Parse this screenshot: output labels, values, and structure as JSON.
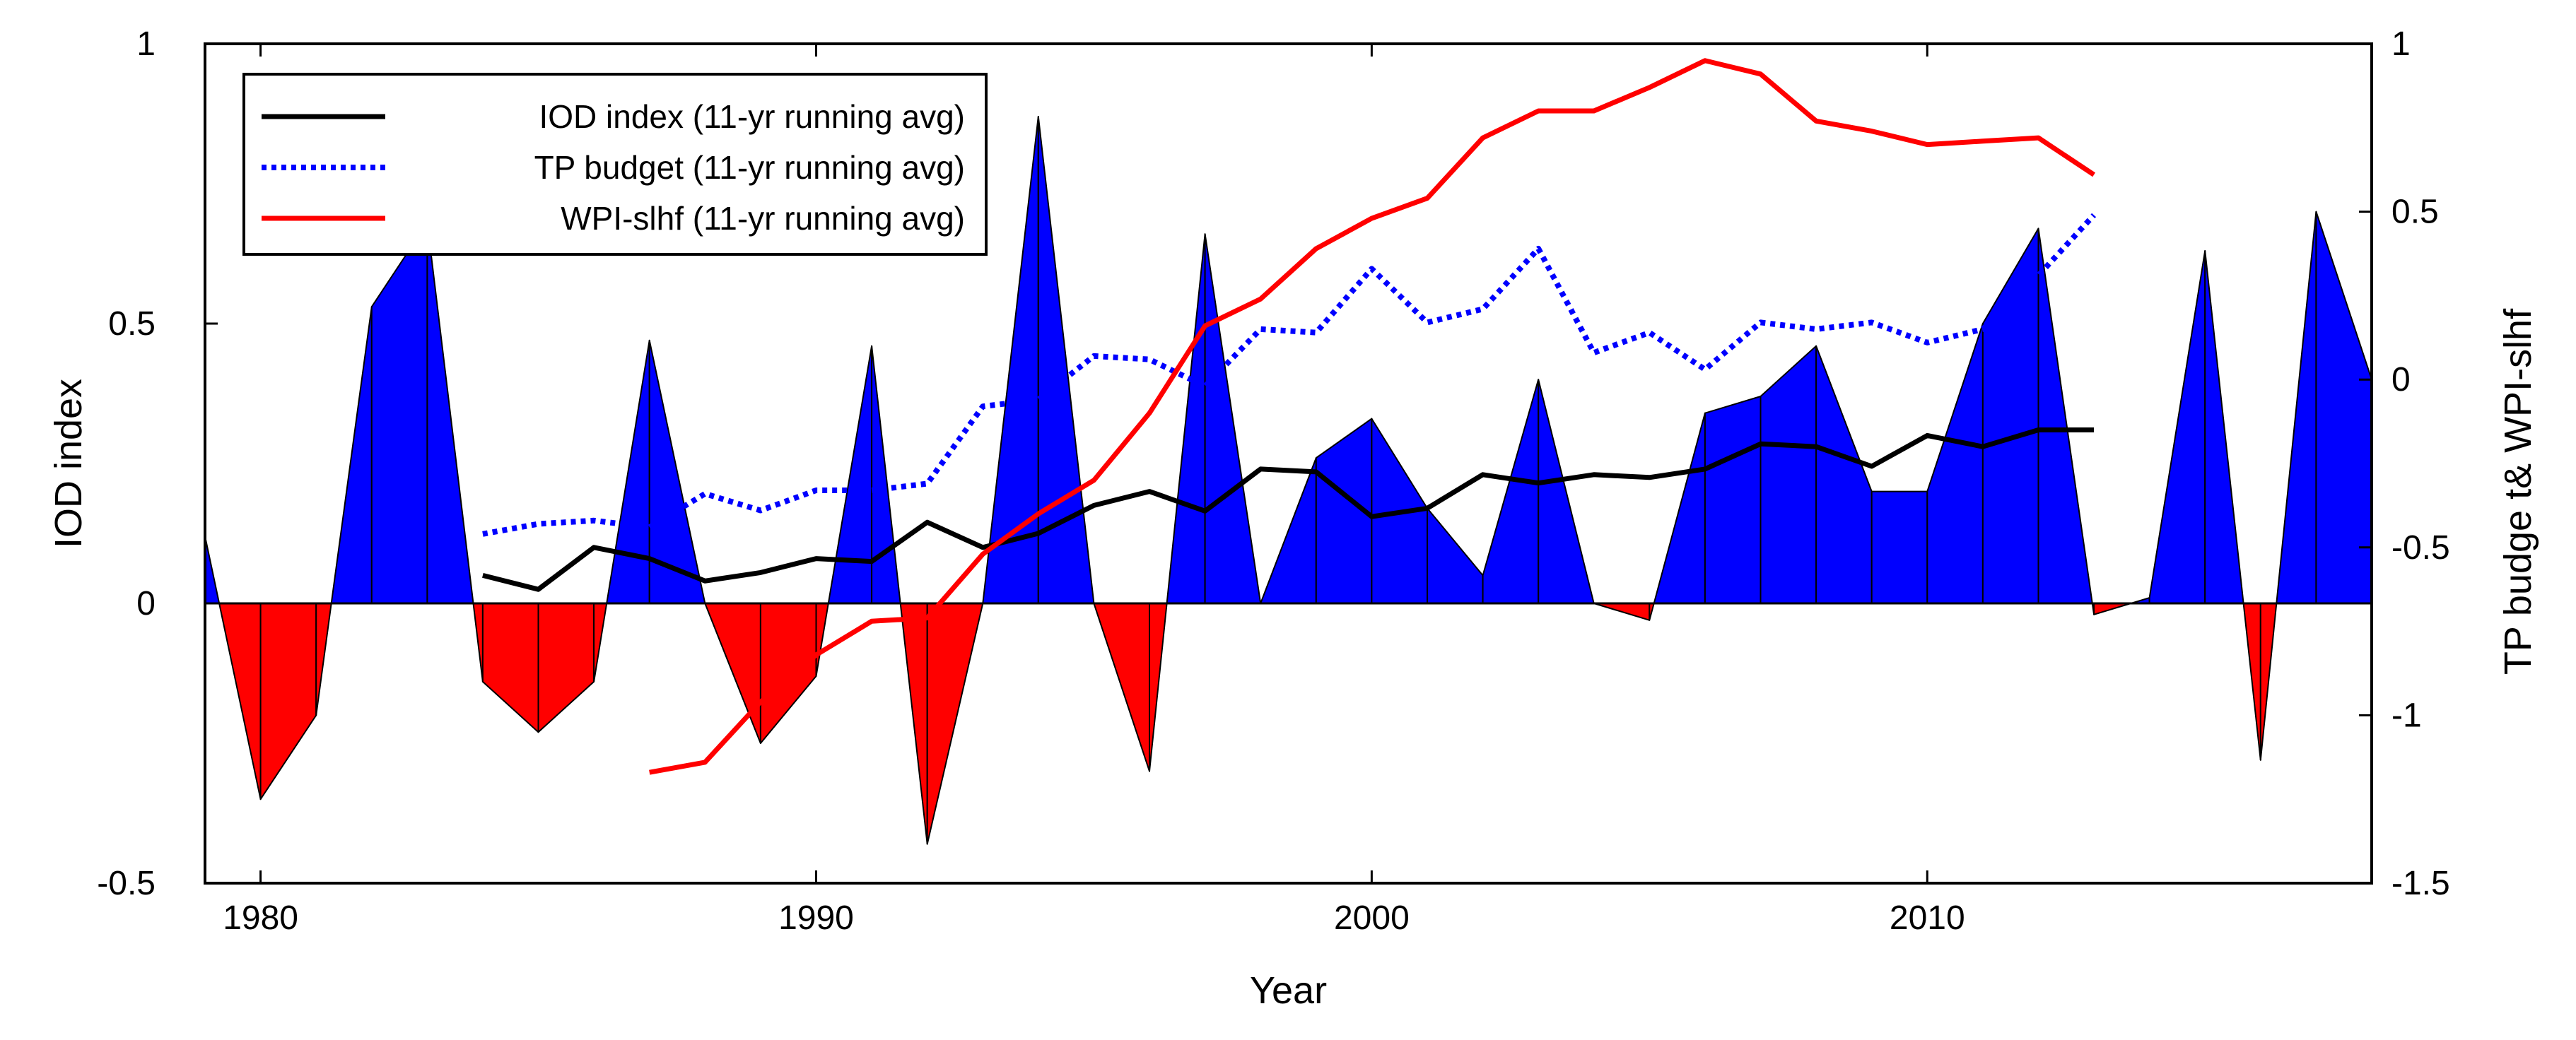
{
  "chart_data": {
    "type": "area",
    "xlabel": "Year",
    "ylabel": "IOD index",
    "y2label": "TP budge t& WPI-slhf",
    "xlim": [
      1979,
      2018
    ],
    "ylim": [
      -0.5,
      1
    ],
    "y2lim": [
      -1.5,
      1
    ],
    "x_ticks": [
      1980,
      1990,
      2000,
      2010
    ],
    "y_ticks": [
      -0.5,
      0,
      0.5,
      1
    ],
    "y_tick_labels": [
      "-0.5",
      "0",
      "0.5",
      "1"
    ],
    "y2_ticks": [
      -1.5,
      -1,
      -0.5,
      0,
      0.5,
      1
    ],
    "y2_tick_labels": [
      "-1.5",
      "-1",
      "-0.5",
      "0",
      "0.5",
      "1"
    ],
    "positive_color": "#0000ff",
    "negative_color": "#ff0000",
    "iod_annual": {
      "x": [
        1979,
        1980,
        1981,
        1982,
        1983,
        1984,
        1985,
        1986,
        1987,
        1988,
        1989,
        1990,
        1991,
        1992,
        1993,
        1994,
        1995,
        1996,
        1997,
        1998,
        1999,
        2000,
        2001,
        2002,
        2003,
        2004,
        2005,
        2006,
        2007,
        2008,
        2009,
        2010,
        2011,
        2012,
        2013,
        2014,
        2015,
        2016,
        2017,
        2018
      ],
      "values": [
        0.12,
        -0.35,
        -0.2,
        0.53,
        0.68,
        -0.14,
        -0.23,
        -0.14,
        0.47,
        0.0,
        -0.25,
        -0.13,
        0.46,
        -0.43,
        0.0,
        0.87,
        0.0,
        -0.3,
        0.66,
        0.0,
        0.26,
        0.33,
        0.17,
        0.05,
        0.4,
        0.0,
        -0.03,
        0.34,
        0.37,
        0.46,
        0.2,
        0.2,
        0.5,
        0.67,
        -0.02,
        0.01,
        0.63,
        -0.28,
        0.7,
        0.4
      ]
    },
    "series": [
      {
        "name": "IOD index (11-yr running avg)",
        "axis": "left",
        "color": "#000000",
        "style": "solid",
        "x": [
          1984,
          1985,
          1986,
          1987,
          1988,
          1989,
          1990,
          1991,
          1992,
          1993,
          1994,
          1995,
          1996,
          1997,
          1998,
          1999,
          2000,
          2001,
          2002,
          2003,
          2004,
          2005,
          2006,
          2007,
          2008,
          2009,
          2010,
          2011,
          2012,
          2013
        ],
        "values": [
          0.05,
          0.025,
          0.1,
          0.08,
          0.04,
          0.055,
          0.08,
          0.075,
          0.145,
          0.1,
          0.125,
          0.175,
          0.2,
          0.165,
          0.24,
          0.235,
          0.155,
          0.17,
          0.23,
          0.215,
          0.23,
          0.225,
          0.24,
          0.285,
          0.28,
          0.245,
          0.3,
          0.28,
          0.31,
          0.31
        ]
      },
      {
        "name": "TP budget (11-yr running avg)",
        "axis": "right",
        "color": "#0000ff",
        "style": "dotted",
        "x": [
          1984,
          1985,
          1986,
          1987,
          1988,
          1989,
          1990,
          1991,
          1992,
          1993,
          1994,
          1995,
          1996,
          1997,
          1998,
          1999,
          2000,
          2001,
          2002,
          2003,
          2004,
          2005,
          2006,
          2007,
          2008,
          2009,
          2010,
          2011,
          2012,
          2013
        ],
        "values": [
          -0.46,
          -0.43,
          -0.42,
          -0.44,
          -0.34,
          -0.39,
          -0.33,
          -0.33,
          -0.31,
          -0.08,
          -0.06,
          0.07,
          0.06,
          -0.02,
          0.15,
          0.14,
          0.33,
          0.17,
          0.21,
          0.39,
          0.08,
          0.14,
          0.03,
          0.17,
          0.15,
          0.17,
          0.11,
          0.15,
          0.31,
          0.49
        ]
      },
      {
        "name": "WPI-slhf (11-yr running avg)",
        "axis": "right",
        "color": "#ff0000",
        "style": "solid",
        "x": [
          1987,
          1988,
          1989,
          1990,
          1991,
          1992,
          1993,
          1994,
          1995,
          1996,
          1997,
          1998,
          1999,
          2000,
          2001,
          2002,
          2003,
          2004,
          2005,
          2006,
          2007,
          2008,
          2009,
          2010,
          2011,
          2012,
          2013
        ],
        "values": [
          -1.17,
          -1.14,
          -0.96,
          -0.82,
          -0.72,
          -0.71,
          -0.52,
          -0.4,
          -0.3,
          -0.1,
          0.16,
          0.24,
          0.39,
          0.48,
          0.54,
          0.72,
          0.8,
          0.8,
          0.87,
          0.95,
          0.91,
          0.77,
          0.74,
          0.7,
          0.71,
          0.72,
          0.61
        ]
      }
    ],
    "legend": {
      "location": "top-left",
      "entries": [
        "IOD index (11-yr running avg)",
        "TP budget (11-yr running avg)",
        "WPI-slhf (11-yr running avg)"
      ]
    }
  }
}
